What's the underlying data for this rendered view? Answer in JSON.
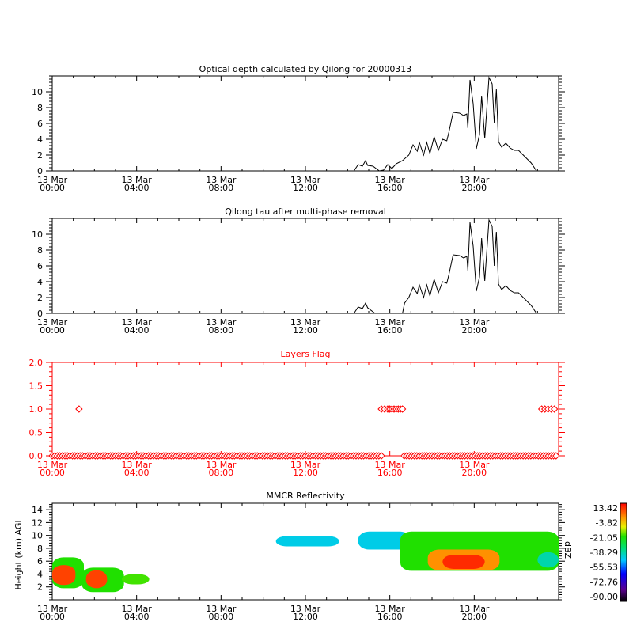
{
  "chart_data": [
    {
      "type": "line",
      "title": "Optical depth calculated by Qilong for 20000313",
      "xlabel": "",
      "ylabel": "",
      "xlim_hours": [
        0,
        24
      ],
      "ylim": [
        0,
        12
      ],
      "yticks": [
        0,
        2,
        4,
        6,
        8,
        10
      ],
      "xtick_labels": [
        [
          "13 Mar",
          "00:00"
        ],
        [
          "13 Mar",
          "04:00"
        ],
        [
          "13 Mar",
          "08:00"
        ],
        [
          "13 Mar",
          "12:00"
        ],
        [
          "13 Mar",
          "16:00"
        ],
        [
          "13 Mar",
          "20:00"
        ]
      ],
      "color": "#000000",
      "x": [
        14.3,
        14.5,
        14.7,
        14.85,
        14.95,
        15.2,
        15.5,
        15.7,
        15.9,
        16.1,
        16.3,
        16.6,
        16.9,
        17.1,
        17.3,
        17.4,
        17.6,
        17.75,
        17.9,
        18.1,
        18.3,
        18.5,
        18.7,
        18.8,
        19.0,
        19.3,
        19.5,
        19.65,
        19.7,
        19.8,
        19.95,
        20.1,
        20.25,
        20.35,
        20.5,
        20.7,
        20.85,
        20.95,
        21.05,
        21.15,
        21.3,
        21.5,
        21.7,
        21.9,
        22.1,
        22.4,
        22.7,
        22.95
      ],
      "values": [
        0,
        0.8,
        0.6,
        1.3,
        0.7,
        0.6,
        0,
        0.1,
        0.8,
        0.3,
        0.9,
        1.3,
        2.0,
        3.3,
        2.5,
        3.6,
        2.0,
        3.6,
        2.2,
        4.3,
        2.6,
        4.0,
        3.8,
        4.9,
        7.4,
        7.3,
        7.0,
        7.2,
        5.4,
        11.5,
        8.5,
        2.8,
        4.6,
        9.5,
        4.1,
        11.8,
        11.0,
        6.0,
        10.3,
        3.7,
        3.0,
        3.5,
        2.9,
        2.6,
        2.6,
        1.8,
        1.0,
        0
      ]
    },
    {
      "type": "line",
      "title": "Qilong tau after multi-phase removal",
      "xlabel": "",
      "ylabel": "",
      "xlim_hours": [
        0,
        24
      ],
      "ylim": [
        0,
        12
      ],
      "yticks": [
        0,
        2,
        4,
        6,
        8,
        10
      ],
      "xtick_labels": [
        [
          "13 Mar",
          "00:00"
        ],
        [
          "13 Mar",
          "04:00"
        ],
        [
          "13 Mar",
          "08:00"
        ],
        [
          "13 Mar",
          "12:00"
        ],
        [
          "13 Mar",
          "16:00"
        ],
        [
          "13 Mar",
          "20:00"
        ]
      ],
      "color": "#000000",
      "x": [
        14.3,
        14.5,
        14.7,
        14.85,
        14.95,
        15.3,
        16.6,
        16.7,
        16.9,
        17.1,
        17.3,
        17.4,
        17.6,
        17.75,
        17.9,
        18.1,
        18.3,
        18.5,
        18.7,
        18.8,
        19.0,
        19.3,
        19.5,
        19.65,
        19.7,
        19.8,
        19.95,
        20.1,
        20.25,
        20.35,
        20.5,
        20.7,
        20.85,
        20.95,
        21.05,
        21.15,
        21.3,
        21.5,
        21.7,
        21.9,
        22.1,
        22.4,
        22.7,
        22.95
      ],
      "values": [
        0,
        0.8,
        0.6,
        1.3,
        0.7,
        0,
        0,
        1.3,
        2.0,
        3.3,
        2.5,
        3.6,
        2.0,
        3.6,
        2.2,
        4.3,
        2.6,
        4.0,
        3.8,
        4.9,
        7.4,
        7.3,
        7.0,
        7.2,
        5.4,
        11.5,
        8.5,
        2.8,
        4.6,
        9.5,
        4.1,
        11.8,
        11.0,
        6.0,
        10.3,
        3.7,
        3.0,
        3.5,
        2.9,
        2.6,
        2.6,
        1.8,
        1.0,
        0
      ]
    },
    {
      "type": "scatter",
      "title": "Layers Flag",
      "xlim_hours": [
        0,
        24
      ],
      "ylim": [
        0,
        2
      ],
      "yticks": [
        "0.0",
        "0.5",
        "1.0",
        "1.5",
        "2.0"
      ],
      "xtick_labels": [
        [
          "13 Mar",
          "00:00"
        ],
        [
          "13 Mar",
          "04:00"
        ],
        [
          "13 Mar",
          "08:00"
        ],
        [
          "13 Mar",
          "12:00"
        ],
        [
          "13 Mar",
          "16:00"
        ],
        [
          "13 Mar",
          "20:00"
        ]
      ],
      "color": "#ff0000",
      "marker": "diamond",
      "ones_hours": [
        1.27,
        15.6,
        15.75,
        15.9,
        16.0,
        16.1,
        16.2,
        16.3,
        16.4,
        16.5,
        16.6,
        23.2,
        23.35,
        23.5,
        23.65,
        23.8
      ],
      "zeros_range_hours": [
        0,
        24
      ],
      "zeros_gap_hours": [
        15.6,
        16.6
      ]
    },
    {
      "type": "heatmap",
      "title": "MMCR Reflectivity",
      "ylabel": "Height (km) AGL",
      "colorbar_label": "dBZ",
      "xlim_hours": [
        0,
        24
      ],
      "ylim": [
        0,
        15
      ],
      "yticks": [
        2,
        4,
        6,
        8,
        10,
        12,
        14
      ],
      "xtick_labels": [
        [
          "13 Mar",
          "00:00"
        ],
        [
          "13 Mar",
          "04:00"
        ],
        [
          "13 Mar",
          "08:00"
        ],
        [
          "13 Mar",
          "12:00"
        ],
        [
          "13 Mar",
          "16:00"
        ],
        [
          "13 Mar",
          "20:00"
        ]
      ],
      "colorbar_ticks": [
        "13.42",
        "-3.82",
        "-21.05",
        "-38.29",
        "-55.53",
        "-72.76",
        "-90.00"
      ],
      "regions": [
        {
          "t": [
            0,
            1.5
          ],
          "h": [
            1.8,
            6.6
          ],
          "dbz": -30
        },
        {
          "t": [
            0,
            1.1
          ],
          "h": [
            2.3,
            5.4
          ],
          "dbz": 5
        },
        {
          "t": [
            1.4,
            3.4
          ],
          "h": [
            1.2,
            5.0
          ],
          "dbz": -30
        },
        {
          "t": [
            1.6,
            2.6
          ],
          "h": [
            1.8,
            4.6
          ],
          "dbz": 5
        },
        {
          "t": [
            3.3,
            4.6
          ],
          "h": [
            2.4,
            4.0
          ],
          "dbz": -28
        },
        {
          "t": [
            10.6,
            13.6
          ],
          "h": [
            8.3,
            9.9
          ],
          "dbz": -50
        },
        {
          "t": [
            14.5,
            17.0
          ],
          "h": [
            7.8,
            10.6
          ],
          "dbz": -50
        },
        {
          "t": [
            16.5,
            24.0
          ],
          "h": [
            4.5,
            10.6
          ],
          "dbz": -30
        },
        {
          "t": [
            17.8,
            21.2
          ],
          "h": [
            4.6,
            7.8
          ],
          "dbz": -5
        },
        {
          "t": [
            18.5,
            20.5
          ],
          "h": [
            4.8,
            7.0
          ],
          "dbz": 8
        },
        {
          "t": [
            23.0,
            24.0
          ],
          "h": [
            5.0,
            7.4
          ],
          "dbz": -45
        }
      ]
    }
  ]
}
